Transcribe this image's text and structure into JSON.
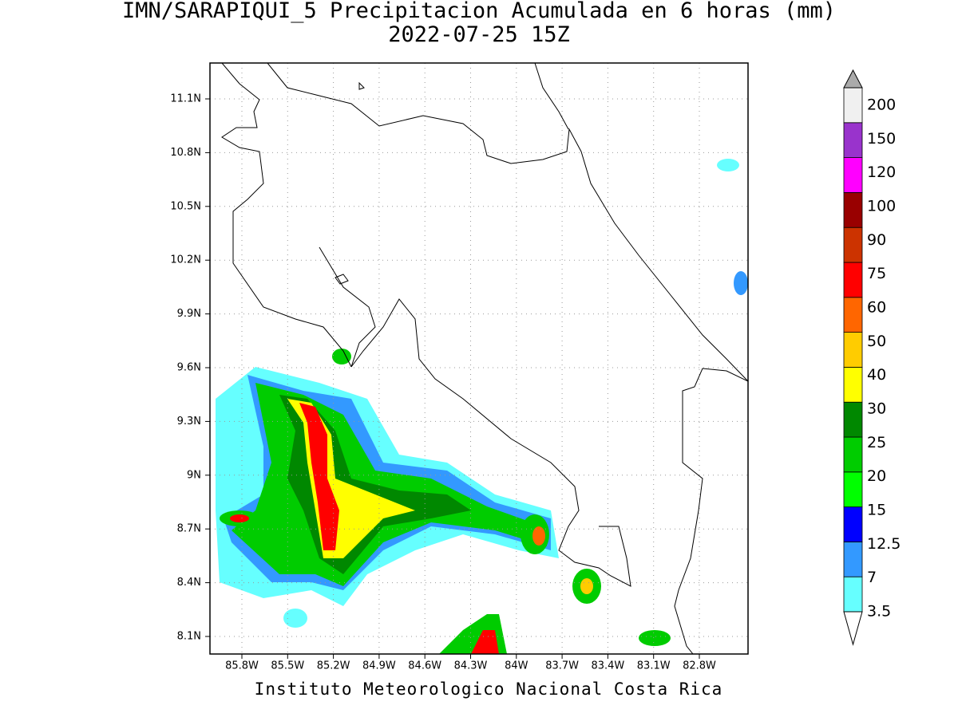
{
  "title": "IMN/SARAPIQUI_5 Precipitacion Acumulada en 6 horas (mm)",
  "subtitle": "2022-07-25 15Z",
  "lat_labels": [
    "11.1N",
    "10.8N",
    "10.5N",
    "10.2N",
    "9.9N",
    "9.6N",
    "9.3N",
    "9N",
    "8.7N",
    "8.4N",
    "8.1N"
  ],
  "lon_labels": [
    "85.8W",
    "85.5W",
    "85.2W",
    "84.9W",
    "84.6W",
    "84.3W",
    "84W",
    "83.7W",
    "83.4W",
    "83.1W",
    "82.8W"
  ],
  "colorbar": {
    "levels": [
      3.5,
      7,
      12.5,
      15,
      20,
      25,
      30,
      40,
      50,
      60,
      75,
      90,
      100,
      120,
      150,
      200
    ],
    "colors": [
      "#66ffff",
      "#3399ff",
      "#0000ff",
      "#00ff00",
      "#00cc00",
      "#008800",
      "#ffff00",
      "#ffcc00",
      "#ff6600",
      "#ff0000",
      "#cc3300",
      "#990000",
      "#ff00ff",
      "#9933cc",
      "#f0f0f0"
    ],
    "over_color": "#aaaaaa",
    "under_color": "#ffffff"
  },
  "footer": "Instituto Meteorologico Nacional Costa Rica"
}
